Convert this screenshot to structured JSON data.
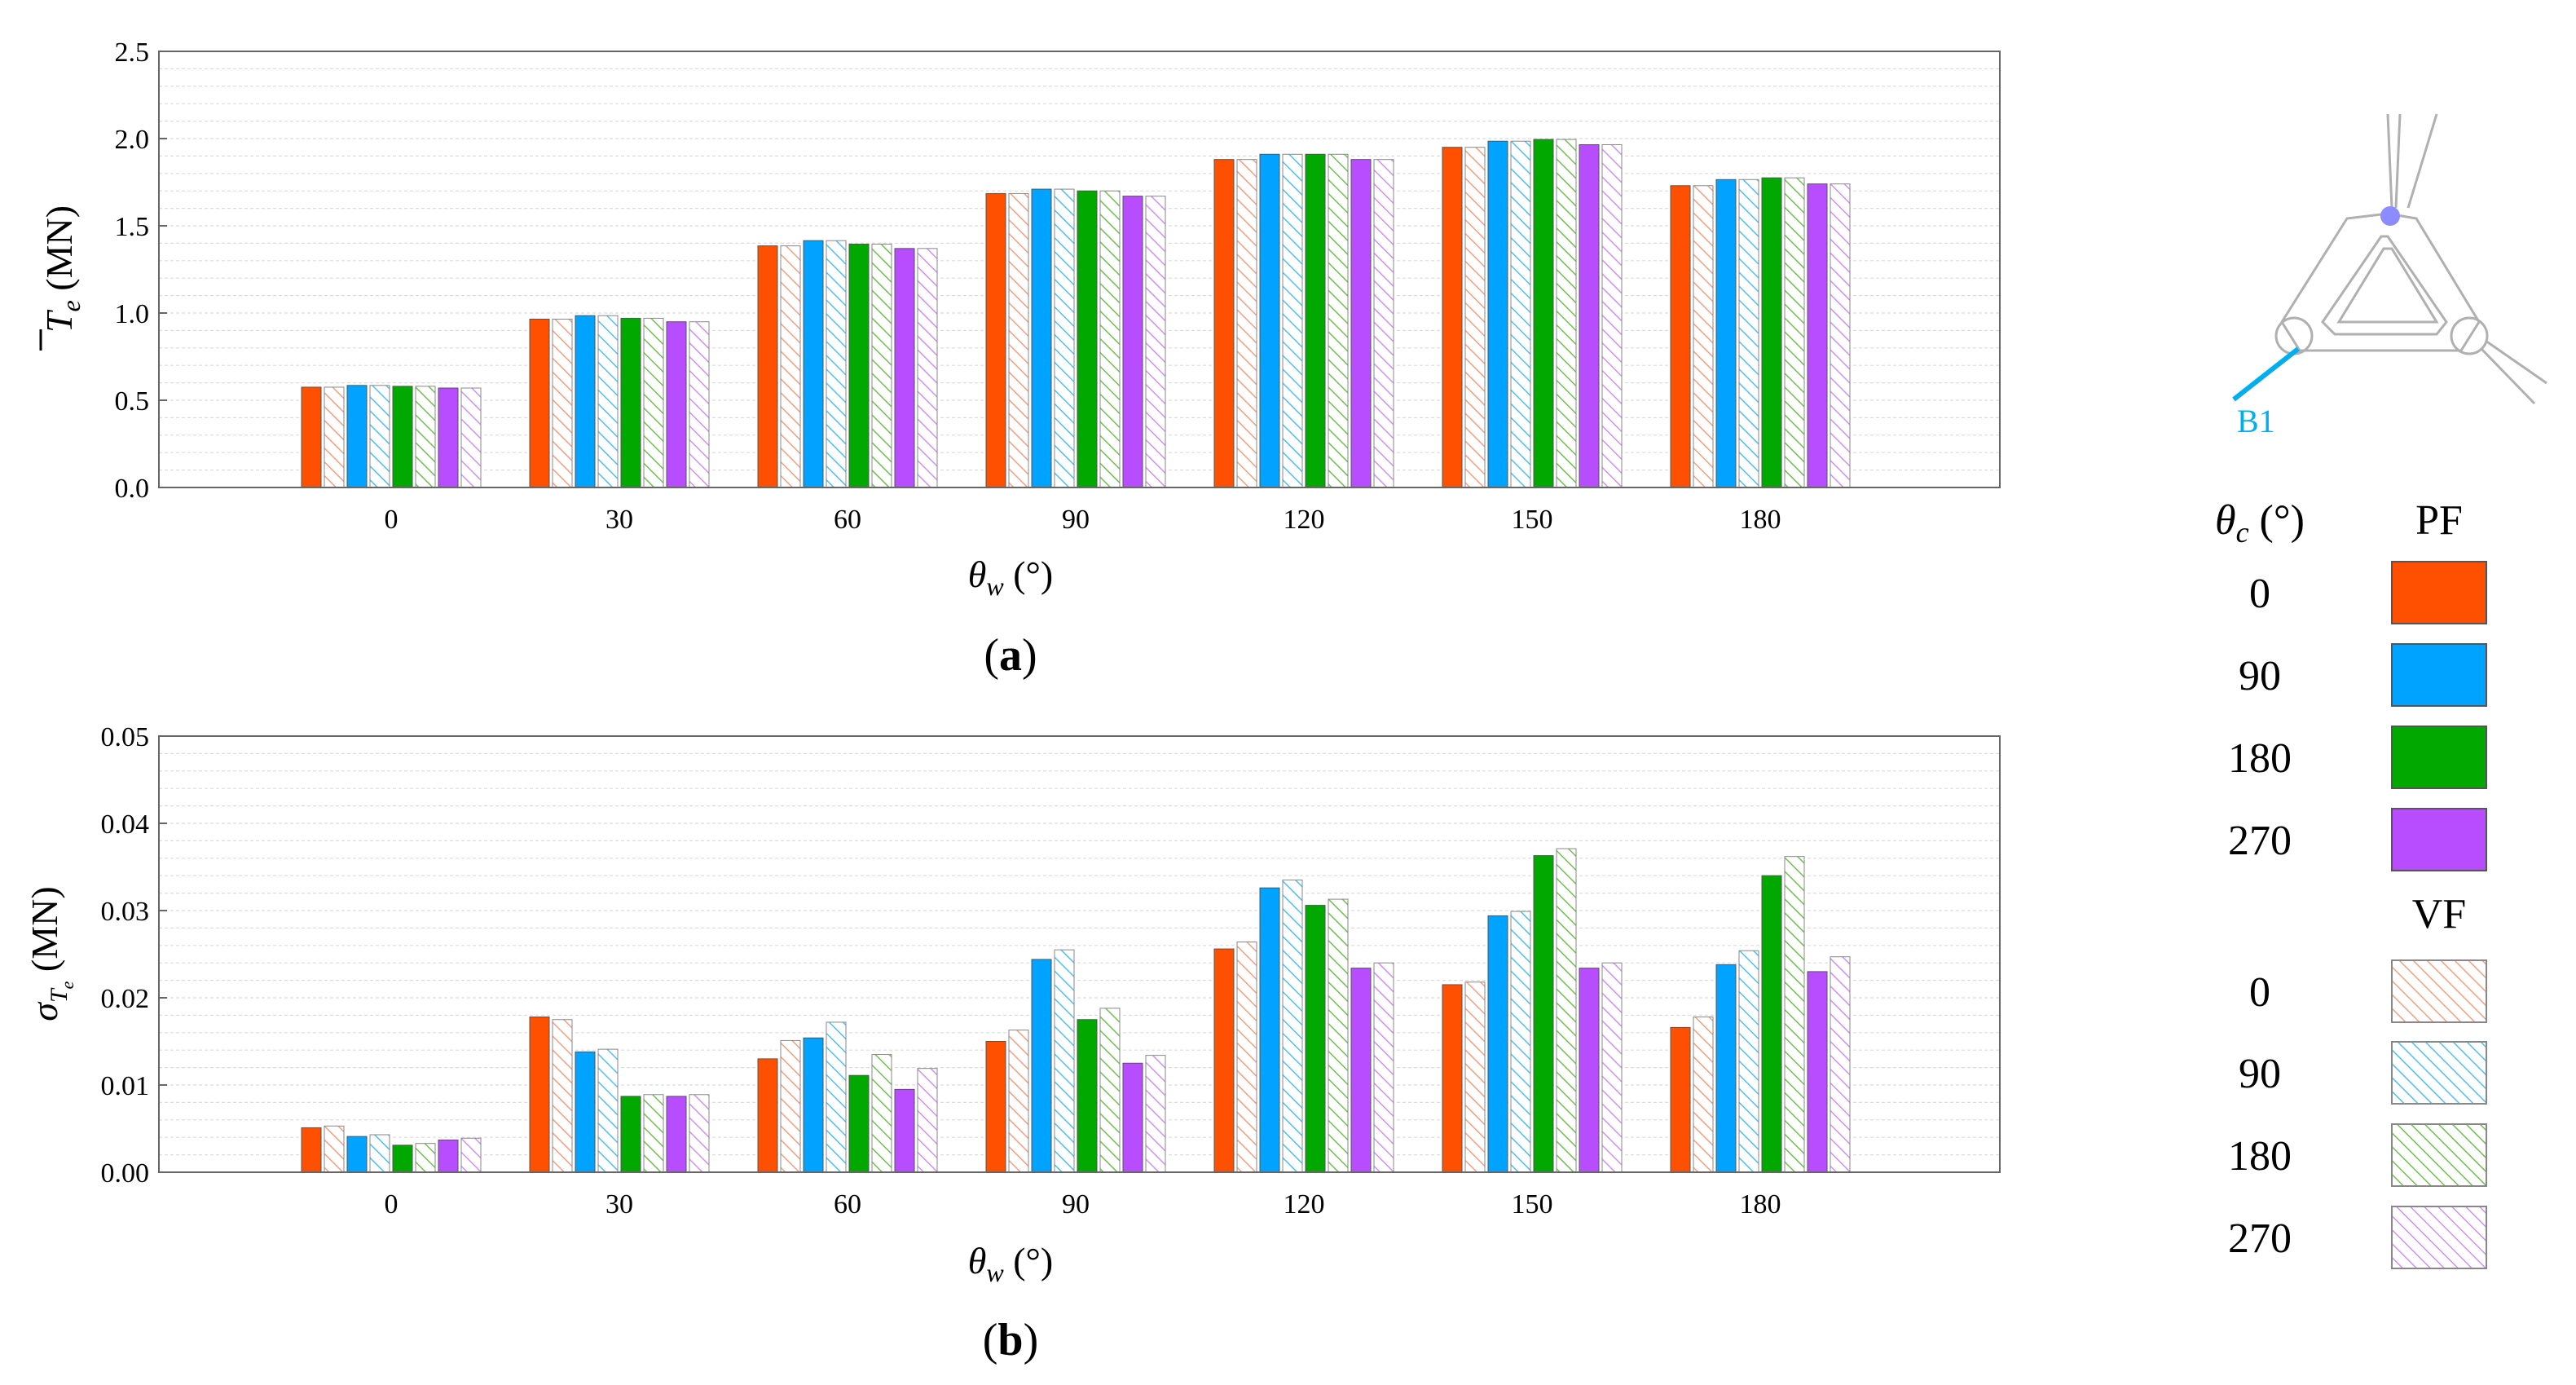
{
  "legend": {
    "theta_c_label": "θ",
    "theta_c_sub": "c",
    "theta_c_unit": " (°)",
    "pf_title": "PF",
    "vf_title": "VF",
    "entries": [
      {
        "label": "0",
        "color": "#FF4F00"
      },
      {
        "label": "90",
        "color": "#00A3FF"
      },
      {
        "label": "180",
        "color": "#00A800"
      },
      {
        "label": "270",
        "color": "#B84DFF"
      }
    ],
    "vf_colors": [
      "#F0A080",
      "#4FC0F0",
      "#70C050",
      "#D090F0"
    ]
  },
  "schematic": {
    "label": "B1",
    "accent": "#00AEEF",
    "node_color": "#8C8CFF"
  },
  "chart_data": [
    {
      "id": "a",
      "type": "bar",
      "panel_label": "a",
      "title": "",
      "xlabel": "θ",
      "xlabel_sub": "w",
      "xlabel_unit": " (°)",
      "ylabel": "T",
      "ylabel_sub": "e",
      "ylabel_unit": " (MN)",
      "ylim": [
        0,
        2.5
      ],
      "yticks": [
        0,
        0.5,
        1.0,
        1.5,
        2.0,
        2.5
      ],
      "ytick_labels": [
        "0.0",
        "0.5",
        "1.0",
        "1.5",
        "2.0",
        "2.5"
      ],
      "minor_grid_step": 0.1,
      "categories": [
        "0",
        "30",
        "60",
        "90",
        "120",
        "150",
        "180"
      ],
      "series": [
        {
          "name": "PF 0",
          "values": [
            0.575,
            0.965,
            1.385,
            1.685,
            1.88,
            1.95,
            1.73
          ]
        },
        {
          "name": "VF 0",
          "values": [
            0.575,
            0.965,
            1.385,
            1.685,
            1.88,
            1.95,
            1.73
          ]
        },
        {
          "name": "PF 90",
          "values": [
            0.585,
            0.985,
            1.415,
            1.71,
            1.91,
            1.985,
            1.765
          ]
        },
        {
          "name": "VF 90",
          "values": [
            0.585,
            0.985,
            1.415,
            1.71,
            1.91,
            1.985,
            1.765
          ]
        },
        {
          "name": "PF 180",
          "values": [
            0.58,
            0.97,
            1.395,
            1.7,
            1.91,
            1.995,
            1.775
          ]
        },
        {
          "name": "VF 180",
          "values": [
            0.58,
            0.97,
            1.395,
            1.7,
            1.91,
            1.995,
            1.775
          ]
        },
        {
          "name": "PF 270",
          "values": [
            0.57,
            0.95,
            1.37,
            1.67,
            1.88,
            1.965,
            1.74
          ]
        },
        {
          "name": "VF 270",
          "values": [
            0.57,
            0.95,
            1.37,
            1.67,
            1.88,
            1.965,
            1.74
          ]
        }
      ]
    },
    {
      "id": "b",
      "type": "bar",
      "panel_label": "b",
      "title": "",
      "xlabel": "θ",
      "xlabel_sub": "w",
      "xlabel_unit": " (°)",
      "ylabel": "σ",
      "ylabel_sub": "T",
      "ylabel_subsub": "e",
      "ylabel_unit": " (MN)",
      "ylim": [
        0,
        0.05
      ],
      "yticks": [
        0,
        0.01,
        0.02,
        0.03,
        0.04,
        0.05
      ],
      "ytick_labels": [
        "0.00",
        "0.01",
        "0.02",
        "0.03",
        "0.04",
        "0.05"
      ],
      "minor_grid_step": 0.002,
      "categories": [
        "0",
        "30",
        "60",
        "90",
        "120",
        "150",
        "180"
      ],
      "series": [
        {
          "name": "PF 0",
          "values": [
            0.0051,
            0.0178,
            0.013,
            0.015,
            0.0256,
            0.0215,
            0.0166
          ]
        },
        {
          "name": "VF 0",
          "values": [
            0.0053,
            0.0175,
            0.0151,
            0.0163,
            0.0264,
            0.0218,
            0.0178
          ]
        },
        {
          "name": "PF 90",
          "values": [
            0.0041,
            0.0138,
            0.0154,
            0.0244,
            0.0326,
            0.0294,
            0.0238
          ]
        },
        {
          "name": "VF 90",
          "values": [
            0.0043,
            0.0141,
            0.0172,
            0.0255,
            0.0335,
            0.0299,
            0.0254
          ]
        },
        {
          "name": "PF 180",
          "values": [
            0.0031,
            0.0087,
            0.0111,
            0.0175,
            0.0306,
            0.0363,
            0.034
          ]
        },
        {
          "name": "VF 180",
          "values": [
            0.0033,
            0.0089,
            0.0135,
            0.0188,
            0.0313,
            0.0371,
            0.0362
          ]
        },
        {
          "name": "PF 270",
          "values": [
            0.0037,
            0.0087,
            0.0095,
            0.0125,
            0.0234,
            0.0234,
            0.023
          ]
        },
        {
          "name": "VF 270",
          "values": [
            0.0039,
            0.0089,
            0.0119,
            0.0134,
            0.024,
            0.024,
            0.0247
          ]
        }
      ]
    }
  ]
}
